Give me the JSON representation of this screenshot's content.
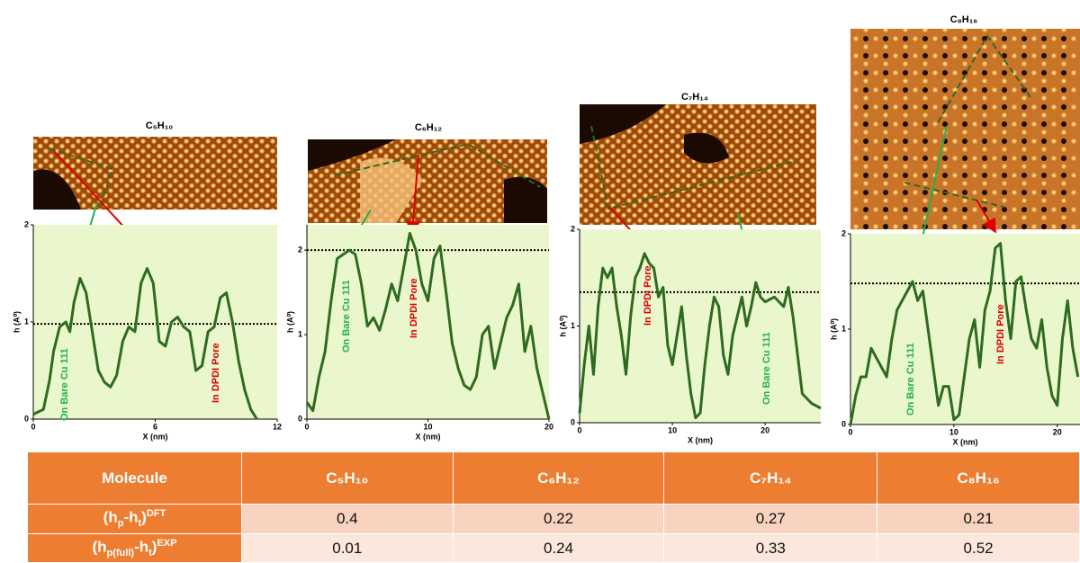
{
  "chart_data": [
    {
      "type": "line",
      "title": "C₅H₁₀",
      "xlabel": "X (nm)",
      "ylabel": "h (A⁰)",
      "x": [
        0,
        0.5,
        0.8,
        1.0,
        1.3,
        1.6,
        1.8,
        2.0,
        2.3,
        2.6,
        2.9,
        3.2,
        3.5,
        3.8,
        4.1,
        4.4,
        4.7,
        5.0,
        5.3,
        5.6,
        5.9,
        6.2,
        6.5,
        6.8,
        7.1,
        7.4,
        7.7,
        8.0,
        8.3,
        8.6,
        8.9,
        9.2,
        9.5,
        9.8,
        10.1,
        10.4,
        10.7,
        11
      ],
      "series": [
        {
          "color": "#2e6b1f",
          "values": [
            0.05,
            0.1,
            0.4,
            0.7,
            0.95,
            1.0,
            0.9,
            1.2,
            1.45,
            1.3,
            0.9,
            0.5,
            0.38,
            0.33,
            0.45,
            0.8,
            0.95,
            0.9,
            1.4,
            1.55,
            1.4,
            0.8,
            0.75,
            1.0,
            1.05,
            0.95,
            0.9,
            0.5,
            0.55,
            0.9,
            0.95,
            1.25,
            1.3,
            1.0,
            0.6,
            0.3,
            0.1,
            0.0
          ]
        }
      ],
      "xlim": [
        0,
        12
      ],
      "xticks": [
        0,
        6,
        12
      ],
      "ylim": [
        0,
        2
      ],
      "yticks": [
        0,
        1,
        2
      ],
      "reference_line": 0.98,
      "annotations": [
        {
          "text": "On Bare Cu 111",
          "color": "#22b14c"
        },
        {
          "text": "In DPDI Pore",
          "color": "#e00000"
        }
      ]
    },
    {
      "type": "line",
      "title": "C₆H₁₂",
      "xlabel": "X (nm)",
      "ylabel": "h (A⁰)",
      "x": [
        0,
        0.5,
        1,
        1.5,
        2,
        2.5,
        3,
        3.5,
        4,
        4.5,
        5,
        5.5,
        6,
        6.5,
        7,
        7.5,
        8,
        8.5,
        9,
        9.5,
        10,
        10.5,
        11,
        11.5,
        12,
        12.5,
        13,
        13.5,
        14,
        14.5,
        15,
        15.5,
        16,
        16.5,
        17,
        17.5,
        18,
        18.5,
        19,
        19.5,
        20
      ],
      "series": [
        {
          "color": "#2e6b1f",
          "values": [
            0.2,
            0.1,
            0.5,
            0.8,
            1.4,
            1.9,
            1.95,
            2.0,
            1.95,
            1.6,
            1.1,
            1.2,
            1.05,
            1.3,
            1.6,
            1.4,
            1.8,
            2.2,
            2.0,
            1.6,
            1.4,
            1.9,
            2.05,
            1.5,
            0.9,
            0.6,
            0.4,
            0.35,
            0.5,
            1.0,
            1.1,
            0.6,
            0.9,
            1.2,
            1.35,
            1.6,
            0.8,
            1.1,
            0.6,
            0.3,
            0.0
          ]
        }
      ],
      "xlim": [
        0,
        20
      ],
      "xticks": [
        0,
        10,
        20
      ],
      "ylim": [
        0,
        2.3
      ],
      "yticks": [
        0,
        1,
        2
      ],
      "reference_line": 2.0,
      "annotations": [
        {
          "text": "On Bare Cu 111",
          "color": "#22b14c"
        },
        {
          "text": "In DPDI Pore",
          "color": "#e00000"
        }
      ]
    },
    {
      "type": "line",
      "title": "C₇H₁₄",
      "xlabel": "X (nm)",
      "ylabel": "h (A⁰)",
      "x": [
        0,
        0.5,
        1,
        1.5,
        2,
        2.5,
        3,
        3.5,
        4,
        4.5,
        5,
        5.5,
        6,
        6.5,
        7,
        7.5,
        8,
        8.5,
        9,
        9.5,
        10,
        10.5,
        11,
        11.5,
        12,
        12.5,
        13,
        13.5,
        14,
        14.5,
        15,
        15.5,
        16,
        16.5,
        17,
        17.5,
        18,
        18.5,
        19,
        19.5,
        20,
        21,
        22,
        22.5,
        23,
        23.5,
        24,
        25,
        26
      ],
      "series": [
        {
          "color": "#2e6b1f",
          "values": [
            0.1,
            0.6,
            1.0,
            0.5,
            1.2,
            1.6,
            1.5,
            1.6,
            1.2,
            0.9,
            0.5,
            1.1,
            1.5,
            1.6,
            1.75,
            1.65,
            1.6,
            1.3,
            1.4,
            0.8,
            0.6,
            0.9,
            1.2,
            0.7,
            0.3,
            0.05,
            0.1,
            0.6,
            1.0,
            1.3,
            1.2,
            0.7,
            0.5,
            0.9,
            1.1,
            1.3,
            1.0,
            1.2,
            1.45,
            1.3,
            1.25,
            1.3,
            1.2,
            1.4,
            1.1,
            0.7,
            0.3,
            0.2,
            0.15
          ]
        }
      ],
      "xlim": [
        0,
        26
      ],
      "xticks": [
        0,
        10,
        20
      ],
      "ylim": [
        0,
        2
      ],
      "yticks": [
        0,
        1,
        2
      ],
      "reference_line": 1.35,
      "annotations": [
        {
          "text": "In DPDI Pore",
          "color": "#e00000"
        },
        {
          "text": "On Bare Cu 111",
          "color": "#22b14c"
        }
      ]
    },
    {
      "type": "line",
      "title": "C₈H₁₆",
      "xlabel": "X (nm)",
      "ylabel": "h (A⁰)",
      "x": [
        0,
        0.5,
        1,
        1.5,
        2,
        2.5,
        3,
        3.5,
        4,
        4.5,
        5,
        5.5,
        6,
        6.5,
        7,
        7.5,
        8,
        8.5,
        9,
        9.5,
        10,
        10.5,
        11,
        11.5,
        12,
        12.5,
        13,
        13.5,
        14,
        14.5,
        15,
        15.5,
        16,
        16.5,
        17,
        17.5,
        18,
        18.5,
        19,
        19.5,
        20,
        20.5,
        21,
        21.5,
        22
      ],
      "series": [
        {
          "color": "#2e6b1f",
          "values": [
            0.0,
            0.3,
            0.5,
            0.5,
            0.8,
            0.7,
            0.6,
            0.5,
            0.9,
            1.2,
            1.3,
            1.4,
            1.5,
            1.3,
            1.4,
            1.0,
            0.6,
            0.2,
            0.4,
            0.4,
            0.05,
            0.1,
            0.5,
            0.9,
            1.1,
            0.6,
            1.2,
            1.4,
            1.85,
            1.9,
            1.3,
            0.9,
            1.5,
            1.55,
            1.2,
            0.9,
            0.8,
            1.1,
            0.6,
            0.3,
            0.2,
            0.9,
            1.3,
            0.8,
            0.5
          ]
        }
      ],
      "xlim": [
        0,
        22.2
      ],
      "xticks": [
        0,
        10,
        20
      ],
      "ylim": [
        0,
        2
      ],
      "yticks": [
        0,
        1,
        2
      ],
      "reference_line": 1.48,
      "annotations": [
        {
          "text": "On Bare Cu 111",
          "color": "#22b14c"
        },
        {
          "text": "In DPDI Pore",
          "color": "#e00000"
        }
      ]
    }
  ],
  "table": {
    "header": [
      "Molecule",
      "C₅H₁₀",
      "C₆H₁₂",
      "C₇H₁₄",
      "C₈H₁₆"
    ],
    "rows": [
      {
        "label": [
          {
            "text": "(h"
          },
          {
            "sub": "p"
          },
          {
            "text": "-h"
          },
          {
            "sub": "t"
          },
          {
            "text": ")"
          },
          {
            "sup": "DFT"
          }
        ],
        "values": [
          0.4,
          0.22,
          0.27,
          0.21
        ]
      },
      {
        "label": [
          {
            "text": "(h"
          },
          {
            "sub": "p(full)"
          },
          {
            "text": "-h"
          },
          {
            "sub": "t"
          },
          {
            "text": ")"
          },
          {
            "sup": "EXP"
          }
        ],
        "values": [
          0.01,
          0.24,
          0.33,
          0.52
        ]
      }
    ]
  }
}
